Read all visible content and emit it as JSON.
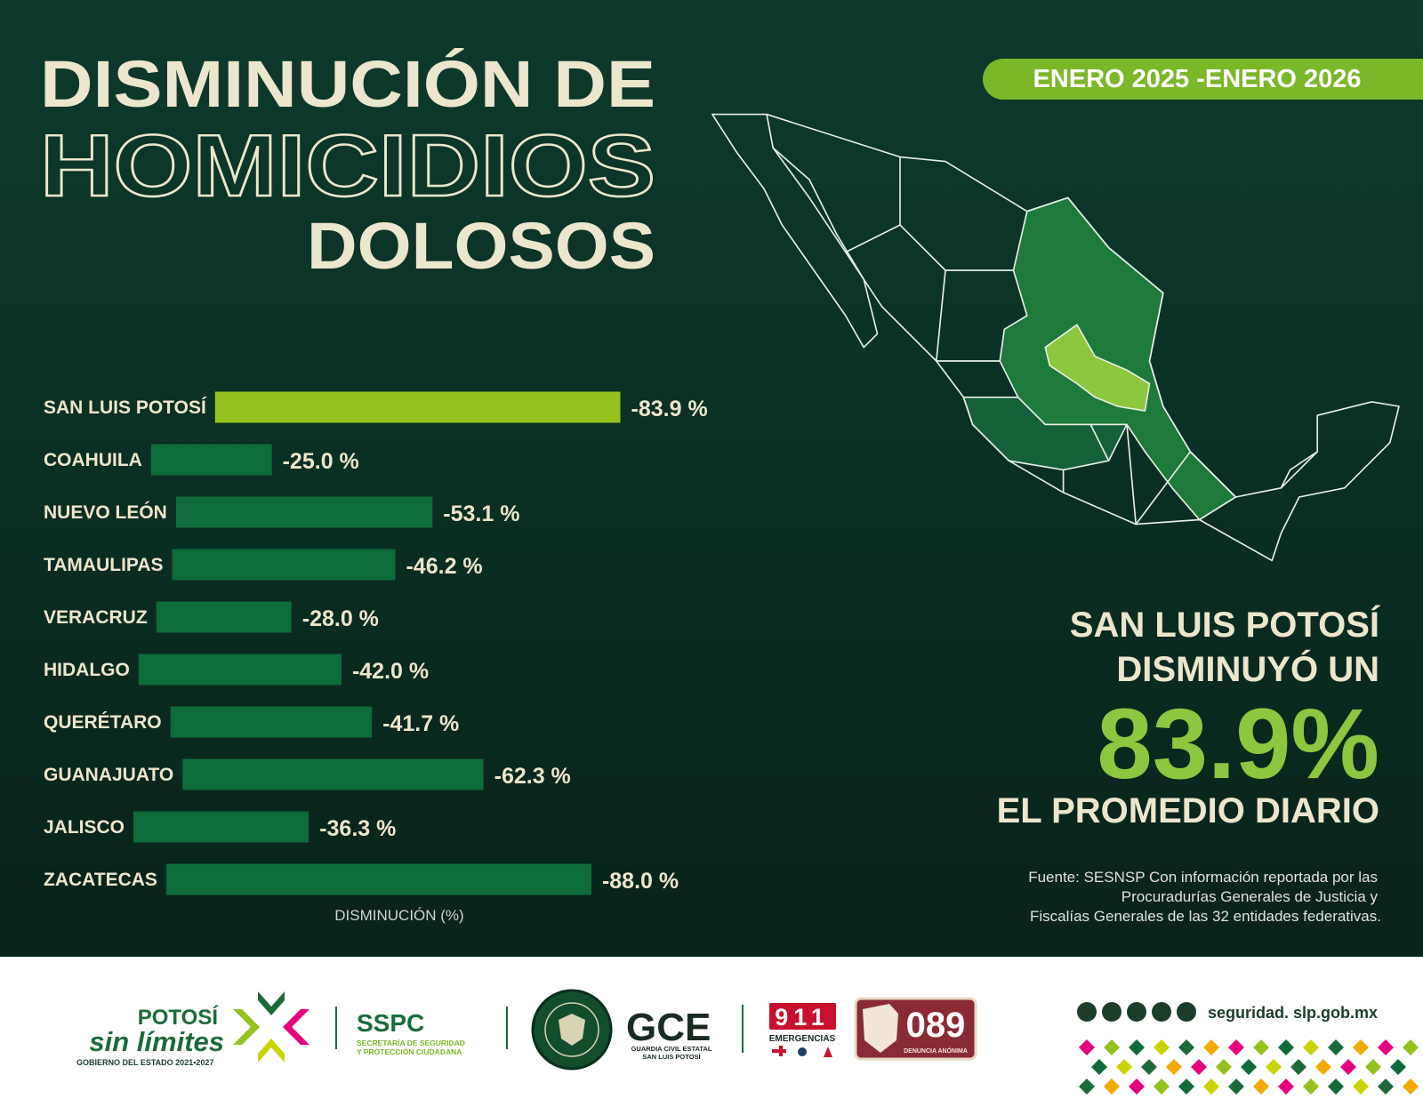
{
  "header": {
    "title_lines": [
      "DISMINUCIÓN DE",
      "HOMICIDIOS",
      "DOLOSOS"
    ],
    "period": "ENERO 2025 -ENERO 2026"
  },
  "chart_data": {
    "type": "bar",
    "orientation": "horizontal",
    "categories": [
      "SAN LUIS POTOSÍ",
      "COAHUILA",
      "NUEVO LEÓN",
      "TAMAULIPAS",
      "VERACRUZ",
      "HIDALGO",
      "QUERÉTARO",
      "GUANAJUATO",
      "JALISCO",
      "ZACATECAS"
    ],
    "values": [
      -83.9,
      -25.0,
      -53.1,
      -46.2,
      -28.0,
      -42.0,
      -41.7,
      -62.3,
      -36.3,
      -88.0
    ],
    "value_labels": [
      "-83.9 %",
      "-25.0 %",
      "-53.1 %",
      "-46.2 %",
      "-28.0 %",
      "-42.0 %",
      "-41.7 %",
      "-62.3 %",
      "-36.3 %",
      "-88.0 %"
    ],
    "colors": [
      "#95c11f",
      "#0e6b3a",
      "#0e6b3a",
      "#0e6b3a",
      "#0e6b3a",
      "#0e6b3a",
      "#0e6b3a",
      "#0e6b3a",
      "#0e6b3a",
      "#0e6b3a"
    ],
    "xlabel": "DISMINUCIÓN (%)"
  },
  "callout": {
    "lines": [
      "SAN LUIS POTOSÍ",
      "DISMINUYÓ UN"
    ],
    "figure": "83.9%",
    "tail": "EL PROMEDIO DIARIO"
  },
  "source": [
    "Fuente: SESNSP Con información reportada por las",
    "Procuradurías Generales de Justicia y",
    "Fiscalías Generales de las 32 entidades federativas."
  ],
  "footer": {
    "gov": {
      "top": "POTOSÍ",
      "main": "sin límites",
      "sub": "GOBIERNO DEL ESTADO 2021•2027"
    },
    "sspc": {
      "name": "SSPC",
      "sub": [
        "SECRETARÍA DE SEGURIDAD",
        "Y PROTECCIÓN CIUDADANA"
      ]
    },
    "gce": {
      "name": "GCE",
      "sub": [
        "GUARDIA CIVIL ESTATAL",
        "SAN LUIS POTOSÍ"
      ]
    },
    "emergency": {
      "number": "911",
      "label": "EMERGENCIAS"
    },
    "denuncia": {
      "number": "089",
      "label": "DENUNCIA ANÓNIMA"
    },
    "website": "seguridad. slp.gob.mx"
  }
}
